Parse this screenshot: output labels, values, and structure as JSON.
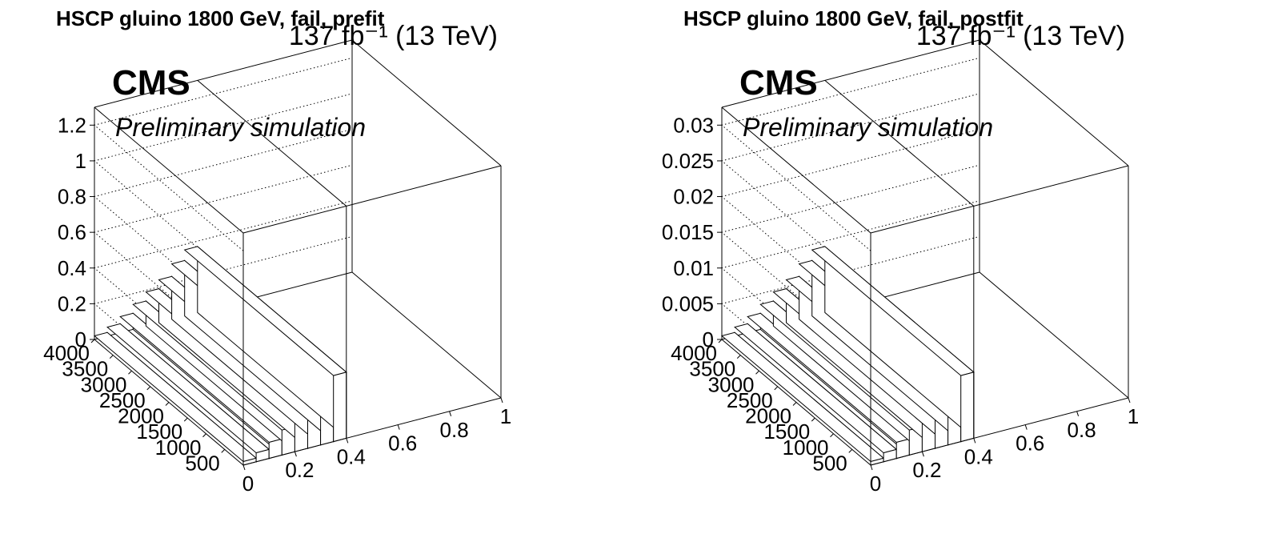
{
  "panels": [
    {
      "title": "HSCP gluino 1800 GeV, fail, prefit",
      "lumi": "137 fb⁻¹ (13 TeV)",
      "cms_label": "CMS",
      "prelim_label": "Preliminary simulation"
    },
    {
      "title": "HSCP gluino 1800 GeV, fail, postfit",
      "lumi": "137 fb⁻¹ (13 TeV)",
      "cms_label": "CMS",
      "prelim_label": "Preliminary simulation"
    }
  ],
  "chart_data": [
    {
      "type": "bar3d",
      "title": "HSCP gluino 1800 GeV, fail, prefit",
      "x_ticks": [
        "0",
        "0.2",
        "0.4",
        "0.6",
        "0.8",
        "1"
      ],
      "y_ticks": [
        "500",
        "1000",
        "1500",
        "2000",
        "2500",
        "3000",
        "3500",
        "4000"
      ],
      "z_ticks": [
        "0",
        "0.2",
        "0.4",
        "0.6",
        "0.8",
        "1",
        "1.2"
      ],
      "xlim": [
        0,
        1
      ],
      "ylim": [
        0,
        4000
      ],
      "zlim": [
        0,
        1.3
      ],
      "x_bin_edges": [
        0,
        0.05,
        0.1,
        0.15,
        0.2,
        0.25,
        0.3,
        0.35,
        0.4
      ],
      "y_range_of_bins": [
        0,
        4000
      ],
      "values": [
        0.02,
        0.05,
        0.09,
        0.14,
        0.19,
        0.24,
        0.31,
        0.37
      ]
    },
    {
      "type": "bar3d",
      "title": "HSCP gluino 1800 GeV, fail, postfit",
      "x_ticks": [
        "0",
        "0.2",
        "0.4",
        "0.6",
        "0.8",
        "1"
      ],
      "y_ticks": [
        "500",
        "1000",
        "1500",
        "2000",
        "2500",
        "3000",
        "3500",
        "4000"
      ],
      "z_ticks": [
        "0",
        "0.005",
        "0.01",
        "0.015",
        "0.02",
        "0.025",
        "0.03"
      ],
      "xlim": [
        0,
        1
      ],
      "ylim": [
        0,
        4000
      ],
      "zlim": [
        0,
        0.0325
      ],
      "x_bin_edges": [
        0,
        0.05,
        0.1,
        0.15,
        0.2,
        0.25,
        0.3,
        0.35,
        0.4
      ],
      "y_range_of_bins": [
        0,
        4000
      ],
      "values": [
        0.0005,
        0.00125,
        0.00225,
        0.0035,
        0.00475,
        0.006,
        0.00775,
        0.00925
      ]
    }
  ]
}
